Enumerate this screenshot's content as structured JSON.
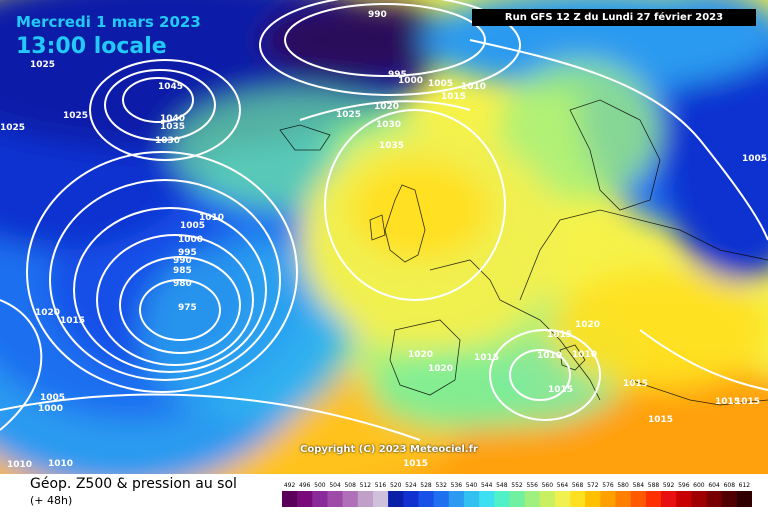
{
  "header": {
    "date": "Mercredi 1 mars 2023",
    "time": "13:00 locale",
    "run": "Run GFS 12 Z du Lundi 27 février 2023"
  },
  "copyright": "Copyright (C) 2023 Meteociel.fr",
  "legend": {
    "title": "Géop. Z500 & pression au sol",
    "subtitle": "(+ 48h)",
    "scale_values": [
      "492",
      "496",
      "500",
      "504",
      "508",
      "512",
      "516",
      "520",
      "524",
      "528",
      "532",
      "536",
      "540",
      "544",
      "548",
      "552",
      "556",
      "560",
      "564",
      "568",
      "572",
      "576",
      "580",
      "584",
      "588",
      "592",
      "596",
      "600",
      "604",
      "608",
      "612"
    ],
    "scale_colors": [
      "#5a005a",
      "#7a0a7a",
      "#8a2a9a",
      "#a04aa8",
      "#b070b8",
      "#c0a0c8",
      "#d0c0dc",
      "#0a1fa8",
      "#1030d0",
      "#1850e8",
      "#1f70f0",
      "#2b9af0",
      "#32c0f0",
      "#3ce0f0",
      "#50f0c8",
      "#70f0a0",
      "#a0f080",
      "#c8f060",
      "#f0f050",
      "#ffe020",
      "#ffc000",
      "#ffa000",
      "#ff8000",
      "#ff5a00",
      "#ff3000",
      "#e81010",
      "#c80000",
      "#a00000",
      "#780000",
      "#500000",
      "#300000"
    ]
  },
  "isobar_labels": [
    "990",
    "995",
    "1000",
    "1005",
    "1010",
    "1015",
    "1020",
    "1025",
    "1030",
    "1035",
    "1040",
    "1045",
    "975",
    "980",
    "985"
  ],
  "map": {
    "label_values": [
      "1025",
      "1025",
      "1045",
      "1040",
      "1035",
      "1030",
      "1025",
      "990",
      "995",
      "1000",
      "1005",
      "1010",
      "1015",
      "1020",
      "1025",
      "1030",
      "1035",
      "1005",
      "1010",
      "1000",
      "995",
      "990",
      "985",
      "980",
      "975",
      "1020",
      "1015",
      "1005",
      "1000",
      "1010",
      "1010",
      "1020",
      "1020",
      "1015",
      "1015",
      "1010",
      "1010",
      "1015",
      "1015",
      "1015",
      "1015",
      "1015",
      "1005",
      "1020",
      "1015"
    ]
  }
}
